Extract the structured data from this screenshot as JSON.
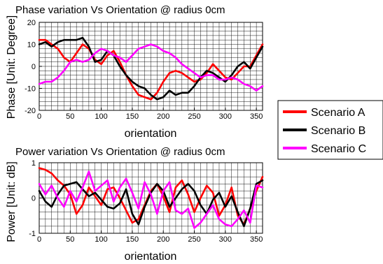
{
  "chart_data": [
    {
      "type": "line",
      "title": "Phase variation Vs Orientation @ radius 0cm",
      "xlabel": "orientation",
      "ylabel": "Phase [Unit: Degree]",
      "xlim": [
        0,
        360
      ],
      "ylim": [
        -20,
        20
      ],
      "xticks": [
        0,
        50,
        100,
        150,
        200,
        250,
        300,
        350
      ],
      "yticks": [
        -20,
        -10,
        0,
        10,
        20
      ],
      "grid": true,
      "x": [
        0,
        10,
        20,
        30,
        40,
        50,
        60,
        70,
        80,
        90,
        100,
        110,
        120,
        130,
        140,
        150,
        160,
        170,
        180,
        190,
        200,
        210,
        220,
        230,
        240,
        250,
        260,
        270,
        280,
        290,
        300,
        310,
        320,
        330,
        340,
        350,
        360
      ],
      "series": [
        {
          "name": "Scenario A",
          "values": [
            12,
            12,
            10,
            8,
            4,
            2,
            6,
            10,
            8,
            3,
            1,
            5,
            7,
            2,
            -4,
            -9,
            -13,
            -14,
            -15,
            -12,
            -7,
            -3,
            -2,
            -3,
            -5,
            -7,
            -6,
            -3,
            1,
            -2,
            -5,
            -6,
            -3,
            0,
            0,
            5,
            10
          ]
        },
        {
          "name": "Scenario B",
          "values": [
            10,
            11,
            9,
            11,
            12,
            12,
            12,
            13,
            9,
            2,
            3,
            7,
            5,
            0,
            -4,
            -7,
            -9,
            -10,
            -13,
            -15,
            -14,
            -11,
            -13,
            -12,
            -12,
            -9,
            -5,
            -2,
            -3,
            -5,
            -7,
            -4,
            0,
            2,
            -1,
            4,
            9
          ]
        },
        {
          "name": "Scenario C",
          "values": [
            -8,
            -7,
            -7,
            -5,
            -2,
            2,
            3,
            2,
            3,
            6,
            8,
            7,
            5,
            4,
            2,
            5,
            8,
            9,
            10,
            9,
            7,
            6,
            4,
            1,
            -1,
            -3,
            -5,
            -4,
            -4,
            -6,
            -6,
            -5,
            -6,
            -8,
            -9,
            -11,
            -9
          ]
        }
      ]
    },
    {
      "type": "line",
      "title": "Power variation Vs Orientation @ radius 0cm",
      "xlabel": "orientation",
      "ylabel": "Power [Unit: dB]",
      "xlim": [
        0,
        360
      ],
      "ylim": [
        -1,
        1
      ],
      "xticks": [
        0,
        50,
        100,
        150,
        200,
        250,
        300,
        350
      ],
      "yticks": [
        -1,
        0,
        1
      ],
      "grid": true,
      "x": [
        0,
        10,
        20,
        30,
        40,
        50,
        60,
        70,
        80,
        90,
        100,
        110,
        120,
        130,
        140,
        150,
        160,
        170,
        180,
        190,
        200,
        210,
        220,
        230,
        240,
        250,
        260,
        270,
        280,
        290,
        300,
        310,
        320,
        330,
        340,
        350,
        360
      ],
      "series": [
        {
          "name": "Scenario A",
          "values": [
            0.85,
            0.8,
            0.7,
            0.5,
            0.35,
            0.1,
            -0.45,
            -0.2,
            0.3,
            0.05,
            -0.2,
            0.25,
            0.3,
            0.0,
            -0.35,
            -0.7,
            -0.6,
            -0.2,
            0.2,
            0.4,
            0.05,
            -0.4,
            0.3,
            0.5,
            0.1,
            -0.4,
            0.0,
            0.35,
            0.15,
            -0.5,
            -0.2,
            0.3,
            -0.5,
            -0.75,
            -0.3,
            0.2,
            0.6
          ]
        },
        {
          "name": "Scenario B",
          "values": [
            0.2,
            -0.1,
            -0.25,
            0.1,
            0.35,
            0.4,
            0.45,
            0.25,
            0.05,
            0.15,
            -0.05,
            -0.25,
            -0.3,
            -0.15,
            0.25,
            -0.45,
            -0.75,
            -0.25,
            0.15,
            0.4,
            0.2,
            -0.25,
            0.0,
            0.25,
            0.4,
            0.2,
            -0.2,
            -0.45,
            -0.05,
            0.15,
            -0.25,
            0.05,
            -0.4,
            -0.8,
            -0.3,
            0.4,
            0.5
          ]
        },
        {
          "name": "Scenario C",
          "values": [
            0.4,
            0.1,
            0.35,
            0.0,
            -0.25,
            0.2,
            -0.1,
            0.3,
            0.75,
            0.2,
            0.35,
            0.5,
            -0.1,
            0.3,
            0.55,
            0.15,
            -0.3,
            0.45,
            0.1,
            -0.45,
            0.2,
            0.45,
            -0.35,
            -0.45,
            -0.3,
            -0.85,
            -0.7,
            -0.45,
            -0.2,
            -0.6,
            -0.75,
            -0.8,
            -0.6,
            -0.35,
            -0.7,
            0.35,
            0.3
          ]
        }
      ]
    }
  ],
  "legend": {
    "items": [
      {
        "label": "Scenario A",
        "color": "#ff0000"
      },
      {
        "label": "Scenario B",
        "color": "#000000"
      },
      {
        "label": "Scenario C",
        "color": "#ff00ff"
      }
    ]
  }
}
